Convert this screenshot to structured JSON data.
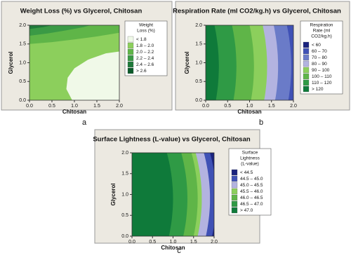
{
  "chart_data": [
    {
      "type": "contour",
      "title": "Weight Loss (%) vs Glycerol, Chitosan",
      "label": "a",
      "x_label": "Chitosan",
      "y_label": "Glycerol",
      "xlim": [
        0,
        2
      ],
      "ylim": [
        0,
        2
      ],
      "xticks": [
        {
          "value": 0,
          "label": "0.0"
        },
        {
          "value": 0.5,
          "label": "0.5"
        },
        {
          "value": 1,
          "label": "1.0"
        },
        {
          "value": 1.5,
          "label": "1.5"
        },
        {
          "value": 2,
          "label": "2.0"
        }
      ],
      "yticks": [
        {
          "value": 0,
          "label": "0.0"
        },
        {
          "value": 0.5,
          "label": "0.5"
        },
        {
          "value": 1,
          "label": "1.0"
        },
        {
          "value": 1.5,
          "label": "1.5"
        },
        {
          "value": 2,
          "label": "2.0"
        }
      ],
      "legend_title": [
        "Weight",
        "Loss (%)"
      ],
      "legend": [
        {
          "label": "< 1.8",
          "color": "#f0f9e8"
        },
        {
          "label": "1.8 – 2.0",
          "color": "#8ccf5c"
        },
        {
          "label": "2.0 – 2.2",
          "color": "#5fb548"
        },
        {
          "label": "2.2 – 2.4",
          "color": "#3a9a45"
        },
        {
          "label": "2.4 – 2.6",
          "color": "#1f7a3a"
        },
        {
          "label": "> 2.6",
          "color": "#0c5a2a"
        }
      ]
    },
    {
      "type": "contour",
      "title": "Respiration Rate (ml CO2/kg.h) vs Glycerol, Chitosan",
      "label": "b",
      "x_label": "Chitosan",
      "y_label": "Glycerol",
      "xlim": [
        0,
        2
      ],
      "ylim": [
        0,
        2
      ],
      "xticks": [
        {
          "value": 0,
          "label": "0.0"
        },
        {
          "value": 0.5,
          "label": "0.5"
        },
        {
          "value": 1,
          "label": "1.0"
        },
        {
          "value": 1.5,
          "label": "1.5"
        },
        {
          "value": 2,
          "label": "2.0"
        }
      ],
      "yticks": [
        {
          "value": 0,
          "label": "0.0"
        },
        {
          "value": 0.5,
          "label": "0.5"
        },
        {
          "value": 1,
          "label": "1.0"
        },
        {
          "value": 1.5,
          "label": "1.5"
        },
        {
          "value": 2,
          "label": "2.0"
        }
      ],
      "legend_title": [
        "Respiration",
        "Rate (ml",
        "CO2/kg.h)"
      ],
      "legend": [
        {
          "label": "< 60",
          "color": "#1a237e"
        },
        {
          "label": "60 – 70",
          "color": "#3f51b5"
        },
        {
          "label": "70 – 80",
          "color": "#6a7bc8"
        },
        {
          "label": "80 – 90",
          "color": "#b3b3e0"
        },
        {
          "label": "90 – 100",
          "color": "#8ccf5c"
        },
        {
          "label": "100 – 110",
          "color": "#5fb548"
        },
        {
          "label": "110 – 120",
          "color": "#2f9a45"
        },
        {
          "label": "> 120",
          "color": "#0f7a3a"
        }
      ]
    },
    {
      "type": "contour",
      "title": "Surface Lightness (L-value) vs Glycerol, Chitosan",
      "label": "c",
      "x_label": "Chitosan",
      "y_label": "Glycerol",
      "xlim": [
        0,
        2
      ],
      "ylim": [
        0,
        2
      ],
      "xticks": [
        {
          "value": 0,
          "label": "0.0"
        },
        {
          "value": 0.5,
          "label": "0.5"
        },
        {
          "value": 1,
          "label": "1.0"
        },
        {
          "value": 1.5,
          "label": "1.5"
        },
        {
          "value": 2,
          "label": "2.0"
        }
      ],
      "yticks": [
        {
          "value": 0,
          "label": "0.0"
        },
        {
          "value": 0.5,
          "label": "0.5"
        },
        {
          "value": 1,
          "label": "1.0"
        },
        {
          "value": 1.5,
          "label": "1.5"
        },
        {
          "value": 2,
          "label": "2.0"
        }
      ],
      "legend_title": [
        "Surface",
        "Lightness",
        "(L-value)"
      ],
      "legend": [
        {
          "label": "< 44.5",
          "color": "#1a237e"
        },
        {
          "label": "44.5 – 45.0",
          "color": "#3f51b5"
        },
        {
          "label": "45.0 – 45.5",
          "color": "#b3b3e0"
        },
        {
          "label": "45.5 – 46.0",
          "color": "#8ccf5c"
        },
        {
          "label": "46.0 – 46.5",
          "color": "#5fb548"
        },
        {
          "label": "46.5 – 47.0",
          "color": "#2f9a45"
        },
        {
          "label": "> 47.0",
          "color": "#0f7a3a"
        }
      ]
    }
  ]
}
